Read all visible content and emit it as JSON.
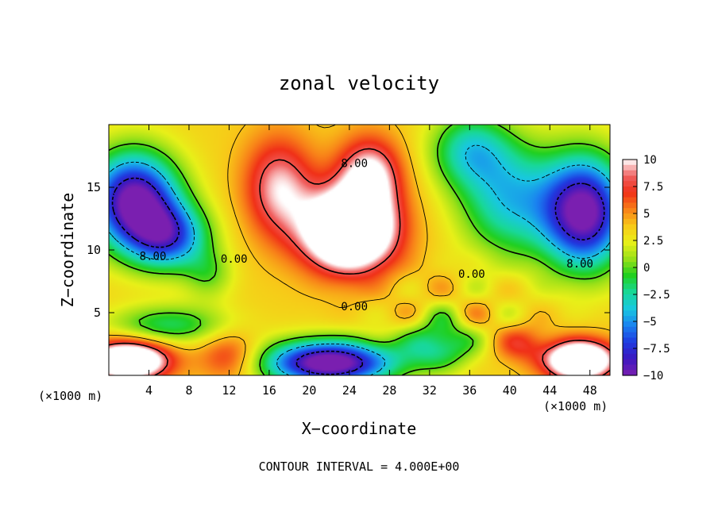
{
  "chart_data": {
    "type": "heatmap",
    "title": "zonal velocity",
    "xlabel": "X−coordinate",
    "ylabel": "Z−coordinate",
    "x_unit_left": "(×1000 m)",
    "x_unit_right": "(×1000 m)",
    "footer": "CONTOUR INTERVAL = 4.000E+00",
    "xlim": [
      0,
      50
    ],
    "ylim": [
      0,
      20
    ],
    "xticks": [
      4,
      8,
      12,
      16,
      20,
      24,
      28,
      32,
      36,
      40,
      44,
      48
    ],
    "yticks": [
      5,
      10,
      15
    ],
    "colorbar": {
      "range": [
        -10,
        10
      ],
      "ticks": [
        "10",
        "7.5",
        "5",
        "2.5",
        "0",
        "−2.5",
        "−5",
        "−7.5",
        "−10"
      ],
      "colors": [
        "#7a1fb0",
        "#3b18c0",
        "#1f3be0",
        "#1a82f0",
        "#18c8e0",
        "#18d898",
        "#20d020",
        "#98e018",
        "#e8f018",
        "#f8c818",
        "#f88018",
        "#f03018",
        "#f06060",
        "#ffffff"
      ]
    },
    "contour_labels": [
      "8.00",
      "0.00",
      "0.00",
      "0.00",
      "8.00",
      "8.00"
    ],
    "features": [
      {
        "kind": "max",
        "x": 22,
        "z": 12,
        "value": 10
      },
      {
        "kind": "max",
        "x": 2,
        "z": 1,
        "value": 10
      },
      {
        "kind": "max",
        "x": 47,
        "z": 1,
        "value": 10
      },
      {
        "kind": "min",
        "x": 2,
        "z": 15,
        "value": -10
      },
      {
        "kind": "min",
        "x": 48,
        "z": 13,
        "value": -10
      },
      {
        "kind": "min",
        "x": 22,
        "z": 1,
        "value": -10
      }
    ]
  }
}
